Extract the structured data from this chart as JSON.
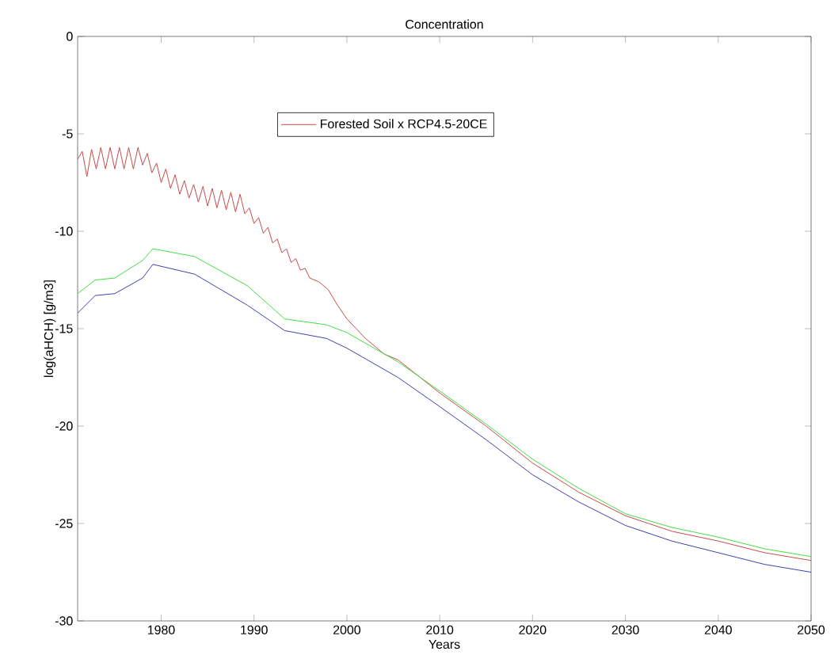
{
  "chart_data": {
    "type": "line",
    "title": "Concentration",
    "xlabel": "Years",
    "ylabel": "log(aHCH) [g/m3]",
    "xlim": [
      1971,
      2050
    ],
    "ylim": [
      -30,
      0
    ],
    "xticks": [
      1980,
      1990,
      2000,
      2010,
      2020,
      2030,
      2040,
      2050
    ],
    "yticks": [
      -30,
      -25,
      -20,
      -15,
      -10,
      -5,
      0
    ],
    "grid": false,
    "legend": "top",
    "marker": "none",
    "line_style": "solid",
    "series": [
      {
        "name": "Forested Soil x RCP4.5-20CE",
        "color": "#c84a4a",
        "x": [
          1971,
          1971.5,
          1972,
          1972.5,
          1973,
          1973.5,
          1974,
          1974.5,
          1975,
          1975.5,
          1976,
          1976.5,
          1977,
          1977.5,
          1978,
          1978.5,
          1979,
          1979.5,
          1980,
          1980.5,
          1981,
          1981.5,
          1982,
          1982.5,
          1983,
          1983.5,
          1984,
          1984.5,
          1985,
          1985.5,
          1986,
          1986.5,
          1987,
          1987.5,
          1988,
          1988.5,
          1989,
          1989.5,
          1990,
          1990.5,
          1991,
          1991.5,
          1992,
          1992.5,
          1993,
          1993.5,
          1994,
          1994.5,
          1995,
          1995.5,
          1996,
          1997,
          1998,
          1999,
          2000,
          2002,
          2004,
          2005.5,
          2010,
          2015,
          2020,
          2025,
          2030,
          2035,
          2040,
          2045,
          2050
        ],
        "values": [
          -6.3,
          -5.9,
          -7.2,
          -5.8,
          -6.8,
          -5.7,
          -6.8,
          -5.7,
          -6.8,
          -5.7,
          -6.8,
          -5.7,
          -6.8,
          -5.7,
          -6.6,
          -6.0,
          -7.0,
          -6.5,
          -7.5,
          -6.8,
          -7.8,
          -7.1,
          -8.1,
          -7.4,
          -8.3,
          -7.6,
          -8.5,
          -7.7,
          -8.7,
          -7.8,
          -8.8,
          -7.9,
          -8.9,
          -8.0,
          -9.0,
          -8.1,
          -9.1,
          -8.8,
          -9.6,
          -9.3,
          -10.1,
          -9.8,
          -10.6,
          -10.4,
          -11.1,
          -10.9,
          -11.6,
          -11.4,
          -12.0,
          -11.9,
          -12.4,
          -12.6,
          -13.0,
          -13.8,
          -14.5,
          -15.5,
          -16.3,
          -16.6,
          -18.3,
          -20.0,
          -21.9,
          -23.4,
          -24.6,
          -25.4,
          -25.9,
          -26.5,
          -26.9
        ]
      },
      {
        "color": "#40e040",
        "x": [
          1971,
          1972.9,
          1975,
          1978,
          1979.1,
          1983.6,
          1989.3,
          1993.3,
          1997.8,
          2000,
          2005.5,
          2010,
          2015,
          2020,
          2025,
          2030,
          2035,
          2040,
          2045,
          2050
        ],
        "values": [
          -13.2,
          -12.5,
          -12.4,
          -11.5,
          -10.9,
          -11.3,
          -12.8,
          -14.5,
          -14.8,
          -15.2,
          -16.7,
          -18.2,
          -19.9,
          -21.7,
          -23.2,
          -24.5,
          -25.2,
          -25.7,
          -26.3,
          -26.7
        ]
      },
      {
        "color": "#4040b0",
        "x": [
          1971,
          1972.9,
          1975,
          1978,
          1979.1,
          1983.6,
          1989.3,
          1993.3,
          1997.8,
          2000,
          2005.5,
          2010,
          2015,
          2020,
          2025,
          2030,
          2035,
          2040,
          2045,
          2050
        ],
        "values": [
          -14.2,
          -13.3,
          -13.2,
          -12.4,
          -11.7,
          -12.2,
          -13.8,
          -15.1,
          -15.5,
          -16.0,
          -17.5,
          -19.0,
          -20.7,
          -22.5,
          -23.9,
          -25.1,
          -25.9,
          -26.5,
          -27.1,
          -27.5
        ]
      }
    ]
  }
}
